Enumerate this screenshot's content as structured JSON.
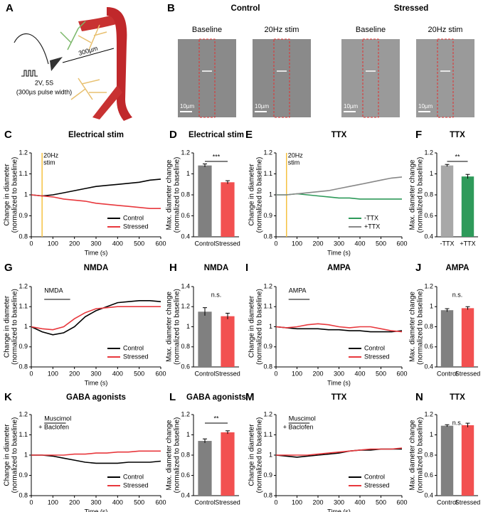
{
  "panel_a": {
    "label": "A",
    "stim_lines": [
      "2V, 5S",
      "(300µs pulse width)"
    ],
    "distance": "300µm"
  },
  "panel_b": {
    "label": "B",
    "groups": [
      "Control",
      "Stressed"
    ],
    "images": [
      "Baseline",
      "20Hz stim",
      "Baseline",
      "20Hz stim"
    ],
    "scale_bars": [
      "10µm",
      "10µm",
      "10µm",
      "10µm"
    ]
  },
  "chart_data": [
    {
      "type": "line",
      "label": "C",
      "title": "Electrical stim",
      "xlabel": "Time (s)",
      "ylabel": [
        "Change in diameter",
        "(normalized to baseline)"
      ],
      "x": [
        0,
        50,
        100,
        150,
        200,
        250,
        300,
        350,
        400,
        450,
        500,
        550,
        600
      ],
      "series": [
        {
          "name": "Control",
          "color": "#000000",
          "values": [
            1,
            0.995,
            1.0,
            1.01,
            1.02,
            1.03,
            1.04,
            1.045,
            1.05,
            1.055,
            1.06,
            1.07,
            1.075
          ]
        },
        {
          "name": "Stressed",
          "color": "#e8383d",
          "values": [
            1,
            0.995,
            0.99,
            0.98,
            0.975,
            0.97,
            0.96,
            0.955,
            0.95,
            0.945,
            0.94,
            0.935,
            0.935
          ]
        }
      ],
      "xlim": [
        0,
        600
      ],
      "xticks": [
        0,
        100,
        200,
        300,
        400,
        500,
        600
      ],
      "ylim": [
        0.8,
        1.2
      ],
      "yticks": [
        0.8,
        0.9,
        1,
        1.1,
        1.2
      ],
      "annotation": {
        "lines": [
          "20Hz",
          "stim"
        ],
        "x": 50,
        "color": "#f5c242"
      },
      "legend": "lower right"
    },
    {
      "type": "bar",
      "label": "D",
      "title": "Electrical stim",
      "ylabel": [
        "Max. diameter change",
        "(normalized to baseline)"
      ],
      "categories": [
        "Control",
        "Stressed"
      ],
      "values": [
        1.08,
        0.92
      ],
      "errors": [
        0.015,
        0.015
      ],
      "colors": [
        "#808080",
        "#f25050"
      ],
      "ylim": [
        0.4,
        1.2
      ],
      "yticks": [
        0.4,
        0.6,
        0.8,
        1,
        1.2
      ],
      "significance": "***",
      "bracket": true
    },
    {
      "type": "line",
      "label": "E",
      "title": "TTX",
      "xlabel": "Time (s)",
      "ylabel": [
        "Change in diameter",
        "(normalized to baseline)"
      ],
      "x": [
        0,
        50,
        100,
        150,
        200,
        250,
        300,
        350,
        400,
        450,
        500,
        550,
        600
      ],
      "series": [
        {
          "name": "-TTX",
          "color": "#2e9a5a",
          "values": [
            1,
            1.0,
            1.005,
            1.0,
            0.995,
            0.99,
            0.985,
            0.985,
            0.98,
            0.98,
            0.98,
            0.98,
            0.98
          ]
        },
        {
          "name": "+TTX",
          "color": "#888888",
          "values": [
            1,
            1.0,
            1.005,
            1.01,
            1.015,
            1.02,
            1.03,
            1.04,
            1.05,
            1.06,
            1.07,
            1.08,
            1.085
          ]
        }
      ],
      "xlim": [
        0,
        600
      ],
      "xticks": [
        0,
        100,
        200,
        300,
        400,
        500,
        600
      ],
      "ylim": [
        0.8,
        1.2
      ],
      "yticks": [
        0.8,
        0.9,
        1,
        1.1,
        1.2
      ],
      "annotation": {
        "lines": [
          "20Hz",
          "stim"
        ],
        "x": 50,
        "color": "#f5c242"
      },
      "legend": "lower right"
    },
    {
      "type": "bar",
      "label": "F",
      "title": "TTX",
      "ylabel": [
        "Max. diameter change",
        "(normalized to baseline)"
      ],
      "categories": [
        "-TTX",
        "+TTX"
      ],
      "values": [
        1.08,
        0.975
      ],
      "errors": [
        0.01,
        0.02
      ],
      "colors": [
        "#a8a8a8",
        "#2e9a5a"
      ],
      "ylim": [
        0.4,
        1.2
      ],
      "yticks": [
        0.4,
        0.6,
        0.8,
        1,
        1.2
      ],
      "significance": "**",
      "bracket": true
    },
    {
      "type": "line",
      "label": "G",
      "title": "NMDA",
      "xlabel": "Time (s)",
      "ylabel": [
        "Change in diameter",
        "(normalized to baseline)"
      ],
      "x": [
        0,
        50,
        100,
        150,
        200,
        250,
        300,
        350,
        400,
        450,
        500,
        550,
        600
      ],
      "series": [
        {
          "name": "Control",
          "color": "#000000",
          "values": [
            1,
            0.975,
            0.96,
            0.97,
            1.0,
            1.05,
            1.08,
            1.1,
            1.12,
            1.125,
            1.13,
            1.13,
            1.125
          ]
        },
        {
          "name": "Stressed",
          "color": "#e8383d",
          "values": [
            1,
            0.99,
            0.985,
            1.0,
            1.04,
            1.07,
            1.09,
            1.095,
            1.1,
            1.1,
            1.1,
            1.1,
            1.1
          ]
        }
      ],
      "xlim": [
        0,
        600
      ],
      "xticks": [
        0,
        100,
        200,
        300,
        400,
        500,
        600
      ],
      "ylim": [
        0.8,
        1.2
      ],
      "yticks": [
        0.8,
        0.9,
        1,
        1.1,
        1.2
      ],
      "annotation": {
        "lines": [
          "NMDA"
        ],
        "from": 60,
        "to": 180
      },
      "legend": "lower right"
    },
    {
      "type": "bar",
      "label": "H",
      "title": "NMDA",
      "ylabel": [
        "Max. diameter change",
        "(normalized to baseline)"
      ],
      "categories": [
        "Control",
        "Stressed"
      ],
      "values": [
        1.15,
        1.105
      ],
      "errors": [
        0.04,
        0.03
      ],
      "colors": [
        "#808080",
        "#f25050"
      ],
      "ylim": [
        0.6,
        1.4
      ],
      "yticks": [
        0.6,
        0.8,
        1,
        1.2,
        1.4
      ],
      "significance": "n.s.",
      "bracket": false
    },
    {
      "type": "line",
      "label": "I",
      "title": "AMPA",
      "xlabel": "Time (s)",
      "ylabel": [
        "Change in diameter",
        "(normalized to baseline)"
      ],
      "x": [
        0,
        50,
        100,
        150,
        200,
        250,
        300,
        350,
        400,
        450,
        500,
        550,
        600
      ],
      "series": [
        {
          "name": "Control",
          "color": "#000000",
          "values": [
            1,
            0.995,
            0.99,
            0.99,
            0.99,
            0.985,
            0.985,
            0.98,
            0.98,
            0.975,
            0.975,
            0.975,
            0.98
          ]
        },
        {
          "name": "Stressed",
          "color": "#e8383d",
          "values": [
            1,
            0.995,
            1.0,
            1.01,
            1.015,
            1.01,
            1.0,
            0.995,
            1.0,
            1.0,
            0.99,
            0.98,
            0.975
          ]
        }
      ],
      "xlim": [
        0,
        600
      ],
      "xticks": [
        0,
        100,
        200,
        300,
        400,
        500,
        600
      ],
      "ylim": [
        0.8,
        1.2
      ],
      "yticks": [
        0.8,
        0.9,
        1,
        1.1,
        1.2
      ],
      "annotation": {
        "lines": [
          "AMPA"
        ],
        "from": 60,
        "to": 160
      },
      "legend": "lower right"
    },
    {
      "type": "bar",
      "label": "J",
      "title": "AMPA",
      "ylabel": [
        "Max. diameter change",
        "(normalized to baseline)"
      ],
      "categories": [
        "Control",
        "Stressed"
      ],
      "values": [
        0.965,
        0.985
      ],
      "errors": [
        0.015,
        0.015
      ],
      "colors": [
        "#808080",
        "#f25050"
      ],
      "ylim": [
        0.4,
        1.2
      ],
      "yticks": [
        0.4,
        0.6,
        0.8,
        1,
        1.2
      ],
      "significance": "n.s.",
      "bracket": false
    },
    {
      "type": "line",
      "label": "K",
      "title": "GABA agonists",
      "xlabel": "Time (s)",
      "ylabel": [
        "Change in diameter",
        "(normalized to baseline)"
      ],
      "x": [
        0,
        50,
        100,
        150,
        200,
        250,
        300,
        350,
        400,
        450,
        500,
        550,
        600
      ],
      "series": [
        {
          "name": "Control",
          "color": "#000000",
          "values": [
            1,
            1,
            0.995,
            0.985,
            0.975,
            0.965,
            0.96,
            0.96,
            0.96,
            0.965,
            0.965,
            0.965,
            0.97
          ]
        },
        {
          "name": "Stressed",
          "color": "#e8383d",
          "values": [
            1,
            1,
            1.0,
            1.0,
            1.005,
            1.005,
            1.01,
            1.01,
            1.015,
            1.015,
            1.02,
            1.02,
            1.02
          ]
        }
      ],
      "xlim": [
        0,
        600
      ],
      "xticks": [
        0,
        100,
        200,
        300,
        400,
        500,
        600
      ],
      "ylim": [
        0.8,
        1.2
      ],
      "yticks": [
        0.8,
        0.9,
        1,
        1.1,
        1.2
      ],
      "annotation": {
        "lines": [
          "Muscimol",
          "+ Baclofen"
        ],
        "from": 60,
        "to": 160
      },
      "legend": "lower right"
    },
    {
      "type": "bar",
      "label": "L",
      "title": "GABA agonists",
      "ylabel": [
        "Max. diameter change",
        "(normalized to baseline)"
      ],
      "categories": [
        "Control",
        "Stressed"
      ],
      "values": [
        0.94,
        1.025
      ],
      "errors": [
        0.02,
        0.015
      ],
      "colors": [
        "#808080",
        "#f25050"
      ],
      "ylim": [
        0.4,
        1.2
      ],
      "yticks": [
        0.4,
        0.6,
        0.8,
        1,
        1.2
      ],
      "significance": "**",
      "bracket": true
    },
    {
      "type": "line",
      "label": "M",
      "title": "TTX",
      "xlabel": "Time (s)",
      "ylabel": [
        "Change in diameter",
        "(normalized to baseline)"
      ],
      "x": [
        0,
        50,
        100,
        150,
        200,
        250,
        300,
        350,
        400,
        450,
        500,
        550,
        600
      ],
      "series": [
        {
          "name": "Control",
          "color": "#000000",
          "values": [
            1,
            0.995,
            0.99,
            0.995,
            1.0,
            1.005,
            1.01,
            1.02,
            1.025,
            1.025,
            1.03,
            1.03,
            1.03
          ]
        },
        {
          "name": "Stressed",
          "color": "#e8383d",
          "values": [
            1,
            1,
            1.0,
            1.0,
            1.005,
            1.01,
            1.015,
            1.02,
            1.025,
            1.03,
            1.03,
            1.03,
            1.035
          ]
        }
      ],
      "xlim": [
        0,
        600
      ],
      "xticks": [
        0,
        100,
        200,
        300,
        400,
        500,
        600
      ],
      "ylim": [
        0.8,
        1.2
      ],
      "yticks": [
        0.8,
        0.9,
        1,
        1.1,
        1.2
      ],
      "annotation": {
        "lines": [
          "Muscimol",
          "+ Baclofen"
        ],
        "from": 60,
        "to": 160
      },
      "legend": "lower right"
    },
    {
      "type": "bar",
      "label": "N",
      "title": "TTX",
      "ylabel": [
        "Max. diameter change",
        "(normalized to baseline)"
      ],
      "categories": [
        "Control",
        "Stressed"
      ],
      "values": [
        1.09,
        1.095
      ],
      "errors": [
        0.01,
        0.02
      ],
      "colors": [
        "#808080",
        "#f25050"
      ],
      "ylim": [
        0.4,
        1.2
      ],
      "yticks": [
        0.4,
        0.6,
        0.8,
        1,
        1.2
      ],
      "significance": "n.s.",
      "bracket": false
    }
  ]
}
